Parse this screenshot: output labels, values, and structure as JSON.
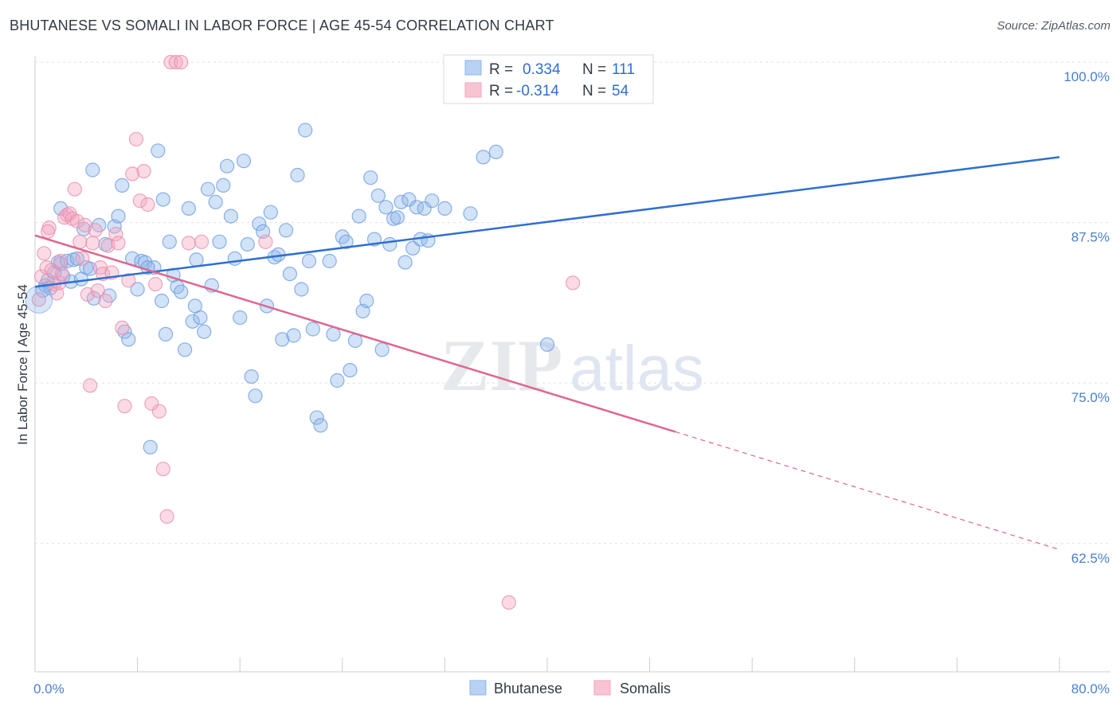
{
  "header": {
    "title": "BHUTANESE VS SOMALI IN LABOR FORCE | AGE 45-54 CORRELATION CHART",
    "source": "Source: ZipAtlas.com"
  },
  "chart_data": {
    "type": "scatter",
    "ylabel": "In Labor Force | Age 45-54",
    "xlim": [
      0,
      80
    ],
    "ylim": [
      52.5,
      100.5
    ],
    "x_tick_labels": [
      "0.0%",
      "80.0%"
    ],
    "y_ticks": [
      100,
      87.5,
      75,
      62.5
    ],
    "y_tick_labels": [
      "100.0%",
      "87.5%",
      "75.0%",
      "62.5%"
    ],
    "grid": true,
    "legend_position": "top-center",
    "watermark": "ZIPatlas",
    "colors": {
      "bhutanese": "#8fb6ea",
      "bhutanese_line": "#2f6fd1",
      "somalis": "#f2a6bf",
      "somalis_line": "#e0668f"
    },
    "legend": {
      "r_label": "R =",
      "n_label": "N =",
      "entries": [
        {
          "name": "Bhutanese",
          "r": "0.334",
          "n": "111"
        },
        {
          "name": "Somalis",
          "r": "-0.314",
          "n": "54"
        }
      ]
    },
    "series": [
      {
        "name": "Bhutanese",
        "trend": {
          "x": [
            0,
            80
          ],
          "y": [
            82.5,
            92.6
          ]
        },
        "points": [
          [
            0.6,
            82.2
          ],
          [
            0.8,
            82.6
          ],
          [
            1.0,
            83.0
          ],
          [
            1.2,
            82.4
          ],
          [
            1.5,
            83.6
          ],
          [
            1.8,
            84.4
          ],
          [
            2.0,
            84.3
          ],
          [
            2.2,
            83.3
          ],
          [
            2.5,
            84.5
          ],
          [
            2.8,
            82.9
          ],
          [
            3.0,
            84.6
          ],
          [
            3.3,
            84.7
          ],
          [
            3.6,
            83.1
          ],
          [
            3.8,
            87.0
          ],
          [
            4.0,
            84.0
          ],
          [
            4.3,
            83.9
          ],
          [
            4.6,
            81.6
          ],
          [
            5.0,
            87.3
          ],
          [
            5.5,
            85.8
          ],
          [
            5.8,
            81.8
          ],
          [
            6.2,
            87.2
          ],
          [
            6.5,
            88.0
          ],
          [
            7.0,
            79.0
          ],
          [
            7.3,
            78.4
          ],
          [
            7.6,
            84.7
          ],
          [
            8.0,
            82.3
          ],
          [
            8.3,
            84.5
          ],
          [
            8.6,
            84.4
          ],
          [
            9.0,
            70.0
          ],
          [
            9.3,
            84.0
          ],
          [
            9.6,
            93.1
          ],
          [
            9.9,
            81.4
          ],
          [
            10.2,
            78.8
          ],
          [
            10.5,
            86.0
          ],
          [
            10.8,
            83.4
          ],
          [
            11.1,
            82.5
          ],
          [
            11.4,
            82.1
          ],
          [
            11.7,
            77.6
          ],
          [
            12.0,
            88.6
          ],
          [
            12.3,
            79.8
          ],
          [
            12.6,
            84.6
          ],
          [
            12.9,
            80.1
          ],
          [
            13.2,
            79.0
          ],
          [
            13.5,
            90.1
          ],
          [
            13.8,
            82.6
          ],
          [
            14.1,
            89.1
          ],
          [
            14.4,
            86.0
          ],
          [
            14.7,
            90.4
          ],
          [
            15.0,
            91.9
          ],
          [
            15.3,
            88.0
          ],
          [
            15.6,
            84.7
          ],
          [
            16.0,
            80.1
          ],
          [
            16.3,
            92.3
          ],
          [
            16.6,
            85.8
          ],
          [
            16.9,
            75.5
          ],
          [
            17.2,
            74.0
          ],
          [
            17.5,
            87.4
          ],
          [
            17.8,
            86.8
          ],
          [
            18.1,
            81.0
          ],
          [
            18.4,
            88.3
          ],
          [
            18.7,
            84.8
          ],
          [
            19.0,
            85.0
          ],
          [
            19.3,
            78.4
          ],
          [
            19.6,
            86.9
          ],
          [
            19.9,
            83.5
          ],
          [
            20.2,
            78.7
          ],
          [
            20.5,
            91.2
          ],
          [
            20.8,
            82.3
          ],
          [
            21.1,
            94.7
          ],
          [
            21.4,
            84.5
          ],
          [
            21.7,
            79.2
          ],
          [
            22.0,
            72.3
          ],
          [
            22.3,
            71.7
          ],
          [
            23.0,
            84.5
          ],
          [
            23.3,
            78.8
          ],
          [
            23.6,
            75.2
          ],
          [
            24.0,
            86.4
          ],
          [
            24.3,
            86.0
          ],
          [
            24.6,
            76.0
          ],
          [
            25.0,
            78.3
          ],
          [
            25.3,
            88.0
          ],
          [
            25.6,
            80.6
          ],
          [
            25.9,
            81.4
          ],
          [
            26.2,
            91.0
          ],
          [
            26.5,
            86.2
          ],
          [
            26.8,
            89.6
          ],
          [
            27.1,
            77.6
          ],
          [
            27.4,
            88.7
          ],
          [
            27.7,
            85.8
          ],
          [
            28.0,
            87.8
          ],
          [
            28.3,
            87.9
          ],
          [
            28.6,
            89.1
          ],
          [
            28.9,
            84.4
          ],
          [
            29.2,
            89.3
          ],
          [
            29.5,
            85.5
          ],
          [
            29.8,
            88.7
          ],
          [
            30.1,
            86.2
          ],
          [
            30.4,
            88.6
          ],
          [
            30.7,
            86.1
          ],
          [
            31.0,
            89.2
          ],
          [
            32.0,
            88.6
          ],
          [
            34.0,
            88.2
          ],
          [
            35.0,
            92.6
          ],
          [
            36.0,
            93.0
          ],
          [
            40.0,
            78.0
          ],
          [
            2.0,
            88.6
          ],
          [
            4.5,
            91.6
          ],
          [
            6.8,
            90.4
          ],
          [
            8.8,
            84.0
          ],
          [
            10.0,
            89.3
          ],
          [
            12.5,
            81.0
          ]
        ]
      },
      {
        "name": "Somalis",
        "trend": {
          "x": [
            0,
            50
          ],
          "y": [
            86.5,
            71.2
          ]
        },
        "points": [
          [
            0.3,
            81.5
          ],
          [
            0.5,
            83.3
          ],
          [
            0.7,
            85.1
          ],
          [
            0.9,
            84.0
          ],
          [
            1.1,
            87.1
          ],
          [
            1.3,
            83.8
          ],
          [
            1.5,
            82.7
          ],
          [
            1.7,
            82.0
          ],
          [
            1.9,
            82.8
          ],
          [
            2.1,
            83.5
          ],
          [
            2.3,
            87.9
          ],
          [
            2.5,
            88.1
          ],
          [
            2.7,
            88.2
          ],
          [
            2.9,
            87.8
          ],
          [
            3.1,
            90.1
          ],
          [
            3.3,
            87.6
          ],
          [
            3.5,
            86.0
          ],
          [
            3.7,
            84.7
          ],
          [
            3.9,
            87.3
          ],
          [
            4.1,
            81.9
          ],
          [
            4.3,
            74.8
          ],
          [
            4.5,
            85.9
          ],
          [
            4.7,
            86.9
          ],
          [
            4.9,
            82.2
          ],
          [
            5.1,
            84.0
          ],
          [
            5.3,
            83.5
          ],
          [
            5.5,
            81.4
          ],
          [
            5.7,
            85.7
          ],
          [
            6.0,
            83.6
          ],
          [
            6.3,
            86.6
          ],
          [
            6.5,
            85.9
          ],
          [
            6.8,
            79.3
          ],
          [
            7.0,
            73.2
          ],
          [
            7.3,
            83.0
          ],
          [
            7.6,
            91.3
          ],
          [
            7.9,
            94.0
          ],
          [
            8.2,
            89.2
          ],
          [
            8.5,
            91.5
          ],
          [
            8.8,
            88.9
          ],
          [
            9.1,
            73.4
          ],
          [
            9.4,
            82.7
          ],
          [
            9.7,
            72.8
          ],
          [
            10.0,
            68.3
          ],
          [
            10.3,
            64.6
          ],
          [
            10.6,
            100.0
          ],
          [
            11.0,
            100.0
          ],
          [
            11.4,
            100.0
          ],
          [
            12.0,
            85.9
          ],
          [
            13.0,
            86.0
          ],
          [
            18.0,
            86.0
          ],
          [
            37.0,
            57.9
          ],
          [
            42.0,
            82.8
          ],
          [
            1.0,
            86.8
          ],
          [
            2.0,
            84.5
          ]
        ]
      }
    ]
  },
  "bottom_legend": {
    "entries": [
      "Bhutanese",
      "Somalis"
    ]
  }
}
